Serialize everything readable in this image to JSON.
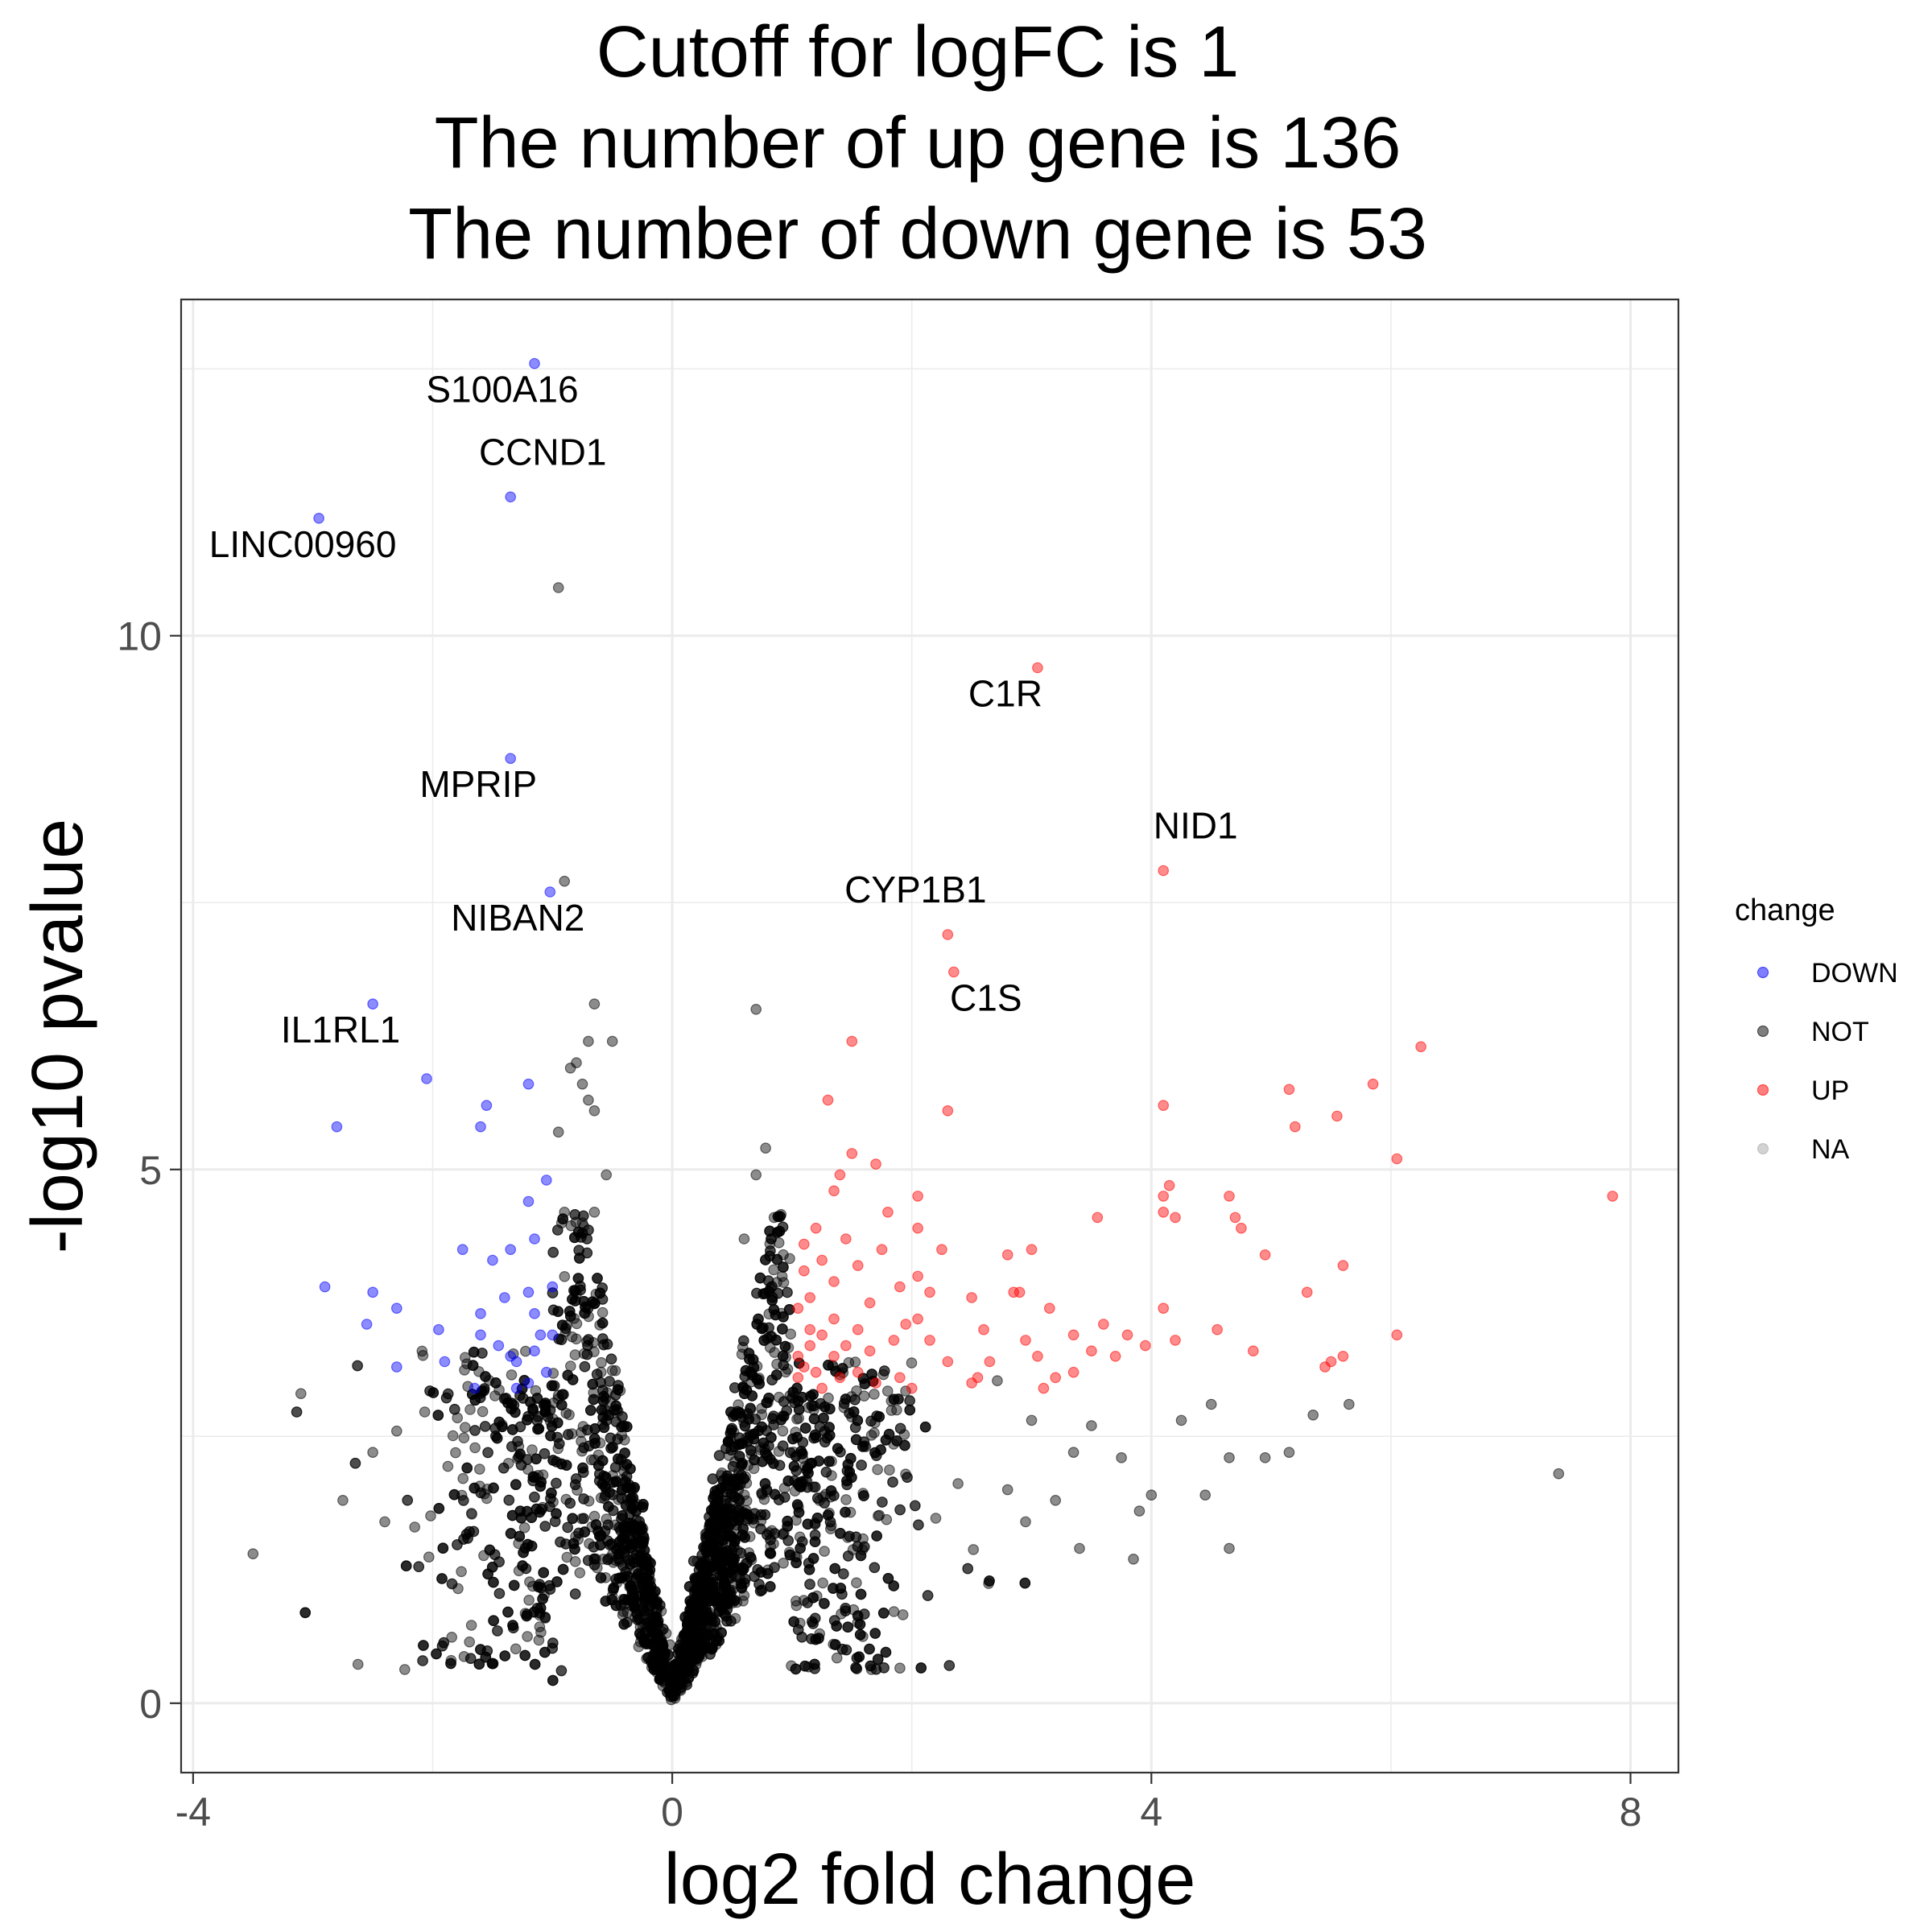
{
  "chart_data": {
    "type": "scatter",
    "title": [
      "Cutoff for logFC is  1",
      "The number of up gene is  136",
      "The number of down gene is  53"
    ],
    "xlabel": "log2 fold change",
    "ylabel": "-log10 pvalue",
    "xlim": [
      -4.1,
      8.4
    ],
    "ylim": [
      -0.65,
      13.15
    ],
    "x_ticks": [
      -4,
      0,
      4,
      8
    ],
    "x_tick_labels": [
      "-4",
      "0",
      "4",
      "8"
    ],
    "y_ticks": [
      0,
      5,
      10
    ],
    "y_tick_labels": [
      "0",
      "5",
      "10"
    ],
    "grid": true,
    "legend": {
      "title": "change",
      "position": "right",
      "entries": [
        {
          "name": "DOWN",
          "color": "#0000ff"
        },
        {
          "name": "NOT",
          "color": "#000000"
        },
        {
          "name": "UP",
          "color": "#ff0000"
        },
        {
          "name": "NA",
          "color": "#808080"
        }
      ]
    },
    "series": [
      {
        "name": "DOWN",
        "color": "#0000ff",
        "points": [
          [
            -1.15,
            12.55
          ],
          [
            -1.35,
            11.3
          ],
          [
            -2.95,
            11.1
          ],
          [
            -1.35,
            8.85
          ],
          [
            -1.02,
            7.6
          ],
          [
            -2.5,
            6.55
          ],
          [
            -2.05,
            5.85
          ],
          [
            -1.2,
            5.8
          ],
          [
            -1.55,
            5.6
          ],
          [
            -2.8,
            5.4
          ],
          [
            -1.6,
            5.4
          ],
          [
            -1.05,
            4.9
          ],
          [
            -1.2,
            4.7
          ],
          [
            -1.15,
            4.35
          ],
          [
            -1.75,
            4.25
          ],
          [
            -1.35,
            4.25
          ],
          [
            -1.5,
            4.15
          ],
          [
            -2.9,
            3.9
          ],
          [
            -2.5,
            3.85
          ],
          [
            -1.0,
            3.9
          ],
          [
            -1.2,
            3.85
          ],
          [
            -1.4,
            3.8
          ],
          [
            -2.3,
            3.7
          ],
          [
            -1.6,
            3.65
          ],
          [
            -1.15,
            3.65
          ],
          [
            -2.55,
            3.55
          ],
          [
            -1.95,
            3.5
          ],
          [
            -1.6,
            3.45
          ],
          [
            -1.1,
            3.45
          ],
          [
            -1.0,
            3.45
          ],
          [
            -2.3,
            3.15
          ],
          [
            -1.9,
            3.2
          ],
          [
            -1.3,
            3.2
          ],
          [
            -1.15,
            3.3
          ],
          [
            -1.05,
            3.1
          ],
          [
            -1.65,
            2.95
          ],
          [
            -1.3,
            2.95
          ],
          [
            -1.2,
            3.0
          ],
          [
            -1.45,
            3.35
          ],
          [
            -1.35,
            3.25
          ]
        ]
      },
      {
        "name": "UP",
        "color": "#ff0000",
        "points": [
          [
            3.05,
            9.7
          ],
          [
            4.1,
            7.8
          ],
          [
            2.3,
            7.2
          ],
          [
            2.35,
            6.85
          ],
          [
            1.5,
            6.2
          ],
          [
            6.25,
            6.15
          ],
          [
            5.85,
            5.8
          ],
          [
            5.15,
            5.75
          ],
          [
            1.3,
            5.65
          ],
          [
            4.1,
            5.6
          ],
          [
            2.3,
            5.55
          ],
          [
            5.55,
            5.5
          ],
          [
            5.2,
            5.4
          ],
          [
            6.05,
            5.1
          ],
          [
            1.5,
            5.15
          ],
          [
            1.7,
            5.05
          ],
          [
            1.4,
            4.95
          ],
          [
            1.35,
            4.8
          ],
          [
            4.15,
            4.85
          ],
          [
            4.1,
            4.75
          ],
          [
            2.05,
            4.75
          ],
          [
            7.85,
            4.75
          ],
          [
            4.65,
            4.75
          ],
          [
            1.8,
            4.6
          ],
          [
            3.55,
            4.55
          ],
          [
            4.1,
            4.6
          ],
          [
            4.2,
            4.55
          ],
          [
            4.7,
            4.55
          ],
          [
            2.05,
            4.45
          ],
          [
            1.2,
            4.45
          ],
          [
            4.75,
            4.45
          ],
          [
            1.45,
            4.35
          ],
          [
            2.25,
            4.25
          ],
          [
            1.1,
            4.3
          ],
          [
            1.75,
            4.25
          ],
          [
            2.8,
            4.2
          ],
          [
            3.0,
            4.25
          ],
          [
            4.95,
            4.2
          ],
          [
            1.25,
            4.15
          ],
          [
            1.55,
            4.1
          ],
          [
            5.6,
            4.1
          ],
          [
            1.1,
            4.05
          ],
          [
            2.05,
            4.0
          ],
          [
            1.35,
            3.95
          ],
          [
            1.9,
            3.9
          ],
          [
            2.15,
            3.85
          ],
          [
            2.5,
            3.8
          ],
          [
            2.85,
            3.85
          ],
          [
            2.9,
            3.85
          ],
          [
            5.3,
            3.85
          ],
          [
            1.15,
            3.8
          ],
          [
            1.65,
            3.75
          ],
          [
            3.15,
            3.7
          ],
          [
            4.1,
            3.7
          ],
          [
            1.05,
            3.7
          ],
          [
            1.35,
            3.6
          ],
          [
            2.05,
            3.6
          ],
          [
            1.95,
            3.55
          ],
          [
            3.6,
            3.55
          ],
          [
            1.15,
            3.5
          ],
          [
            1.55,
            3.5
          ],
          [
            2.6,
            3.5
          ],
          [
            4.55,
            3.5
          ],
          [
            1.25,
            3.45
          ],
          [
            3.35,
            3.45
          ],
          [
            3.8,
            3.45
          ],
          [
            6.05,
            3.45
          ],
          [
            1.15,
            3.35
          ],
          [
            1.45,
            3.35
          ],
          [
            1.85,
            3.4
          ],
          [
            2.15,
            3.4
          ],
          [
            2.95,
            3.4
          ],
          [
            3.95,
            3.35
          ],
          [
            4.2,
            3.4
          ],
          [
            5.6,
            3.25
          ],
          [
            1.05,
            3.25
          ],
          [
            1.35,
            3.25
          ],
          [
            1.65,
            3.3
          ],
          [
            3.5,
            3.3
          ],
          [
            2.3,
            3.2
          ],
          [
            2.65,
            3.2
          ],
          [
            3.05,
            3.25
          ],
          [
            3.7,
            3.25
          ],
          [
            4.85,
            3.3
          ],
          [
            5.5,
            3.2
          ],
          [
            1.1,
            3.15
          ],
          [
            1.55,
            3.1
          ],
          [
            1.9,
            3.05
          ],
          [
            2.55,
            3.05
          ],
          [
            3.2,
            3.05
          ],
          [
            3.35,
            3.1
          ],
          [
            5.45,
            3.15
          ],
          [
            1.05,
            3.05
          ],
          [
            1.2,
            3.1
          ],
          [
            1.4,
            3.05
          ],
          [
            1.7,
            3.0
          ],
          [
            2.5,
            3.0
          ],
          [
            3.1,
            2.95
          ],
          [
            2.0,
            2.95
          ],
          [
            1.25,
            2.95
          ]
        ]
      },
      {
        "name": "NOT",
        "color": "#000000",
        "points": [
          [
            -0.95,
            10.45
          ],
          [
            -0.9,
            7.7
          ],
          [
            -0.65,
            6.55
          ],
          [
            0.7,
            6.5
          ],
          [
            -0.5,
            6.2
          ],
          [
            -0.7,
            6.2
          ],
          [
            -0.8,
            6.0
          ],
          [
            -0.85,
            5.95
          ],
          [
            -0.75,
            5.8
          ],
          [
            -0.7,
            5.65
          ],
          [
            -0.65,
            5.55
          ],
          [
            -0.95,
            5.35
          ],
          [
            0.78,
            5.2
          ],
          [
            -0.55,
            4.95
          ],
          [
            0.7,
            4.95
          ],
          [
            -0.9,
            4.6
          ],
          [
            -0.65,
            4.6
          ],
          [
            -0.75,
            4.5
          ],
          [
            0.85,
            4.55
          ],
          [
            0.6,
            4.35
          ],
          [
            -3.1,
            2.9
          ],
          [
            -2.3,
            2.55
          ],
          [
            -2.5,
            2.35
          ],
          [
            -2.75,
            1.9
          ],
          [
            -2.4,
            1.7
          ],
          [
            -3.5,
            1.4
          ],
          [
            -2.15,
            1.65
          ],
          [
            5.65,
            2.8
          ],
          [
            4.5,
            2.8
          ],
          [
            4.25,
            2.65
          ],
          [
            5.35,
            2.7
          ],
          [
            5.15,
            2.35
          ],
          [
            4.65,
            2.3
          ],
          [
            4.95,
            2.3
          ],
          [
            7.4,
            2.15
          ],
          [
            4.0,
            1.95
          ],
          [
            4.45,
            1.95
          ],
          [
            3.9,
            1.8
          ],
          [
            4.65,
            1.45
          ],
          [
            3.85,
            1.35
          ],
          [
            3.4,
            1.45
          ],
          [
            3.2,
            1.9
          ],
          [
            2.95,
            1.7
          ],
          [
            3.35,
            2.35
          ],
          [
            2.8,
            2.0
          ],
          [
            3.0,
            2.65
          ],
          [
            3.5,
            2.6
          ],
          [
            3.75,
            2.3
          ]
        ]
      }
    ],
    "labels": [
      {
        "text": "S100A16",
        "x": -1.15,
        "y": 12.55
      },
      {
        "text": "CCND1",
        "x": -1.35,
        "y": 11.3
      },
      {
        "text": "LINC00960",
        "x": -2.95,
        "y": 11.1
      },
      {
        "text": "C1R",
        "x": 3.05,
        "y": 9.7
      },
      {
        "text": "MPRIP",
        "x": -1.35,
        "y": 8.85
      },
      {
        "text": "NID1",
        "x": 4.1,
        "y": 7.8
      },
      {
        "text": "CYP1B1",
        "x": 2.3,
        "y": 7.2
      },
      {
        "text": "NIBAN2",
        "x": -1.02,
        "y": 7.6
      },
      {
        "text": "C1S",
        "x": 2.35,
        "y": 6.85
      },
      {
        "text": "IL1RL1",
        "x": -2.5,
        "y": 6.55
      }
    ],
    "background_cloud": {
      "series": "NOT",
      "slope_left": 6.3,
      "slope_right": 5.2,
      "count": 3800
    }
  }
}
